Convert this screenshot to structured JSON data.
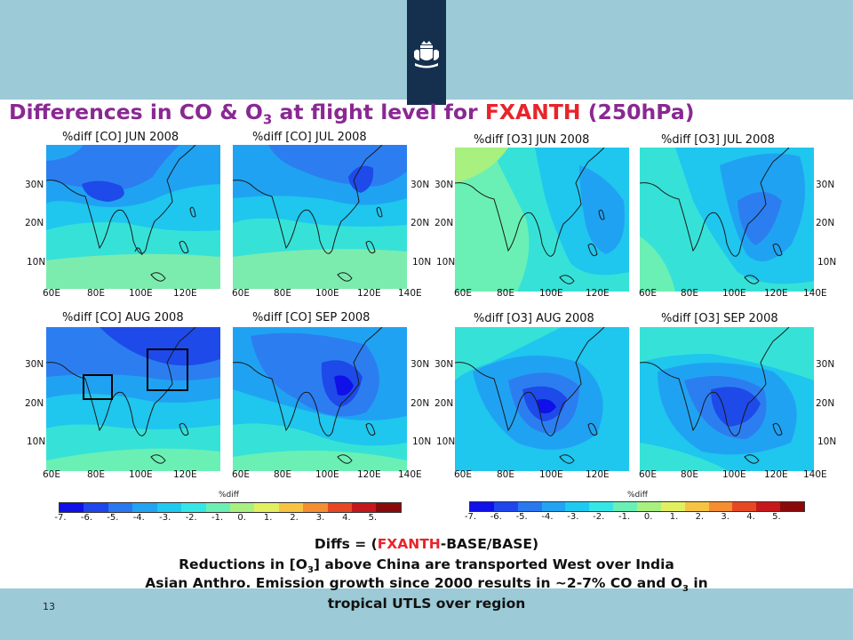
{
  "slide": {
    "title_prefix": "Differences in CO & O",
    "title_sub": "3",
    "title_mid": " at flight level for ",
    "title_highlight": "FXANTH",
    "title_suffix": " (250hPa)",
    "page_number": "13"
  },
  "colors": {
    "band": "#9ccad6",
    "emblem": "#15304f",
    "title": "#8a2893",
    "highlight": "#e8242b"
  },
  "maps": [
    {
      "title": "%diff [CO] JUN 2008"
    },
    {
      "title": "%diff [CO] JUL 2008"
    },
    {
      "title": "%diff [O3] JUN 2008"
    },
    {
      "title": "%diff [O3] JUL 2008"
    },
    {
      "title": "%diff [CO] AUG 2008"
    },
    {
      "title": "%diff [CO] SEP 2008"
    },
    {
      "title": "%diff [O3] AUG 2008"
    },
    {
      "title": "%diff [O3] SEP 2008"
    }
  ],
  "axes": {
    "lat_labels": [
      "30N",
      "20N",
      "10N"
    ],
    "lon_labels_left": [
      "60E",
      "80E",
      "100E",
      "120E"
    ],
    "lon_labels_right": [
      "60E",
      "80E",
      "100E",
      "120E",
      "140E"
    ]
  },
  "colorbar": {
    "label": "%diff",
    "ticks": [
      "-7.",
      "-6.",
      "-5.",
      "-4.",
      "-3.",
      "-2.",
      "-1.",
      "0.",
      "1.",
      "2.",
      "3.",
      "4.",
      "5."
    ],
    "colors": [
      "#1010e8",
      "#1e46ec",
      "#2a78f0",
      "#22a4f2",
      "#1fcaf0",
      "#35e6e6",
      "#6af0b4",
      "#a8f080",
      "#e2f060",
      "#f6c442",
      "#f48e30",
      "#e64824",
      "#c4181c",
      "#8a0a0c"
    ]
  },
  "caption": {
    "line1_prefix": "Diffs = (",
    "line1_highlight": "FXANTH",
    "line1_suffix": "-BASE/BASE)",
    "line2_prefix": "Reductions in [O",
    "line2_sub": "3",
    "line2_suffix": "] above China are transported West over India",
    "line3_prefix": "Asian Anthro. Emission growth since 2000 results in ~2-7% CO and O",
    "line3_sub": "3",
    "line3_suffix": " in",
    "line4": "tropical UTLS over region"
  }
}
